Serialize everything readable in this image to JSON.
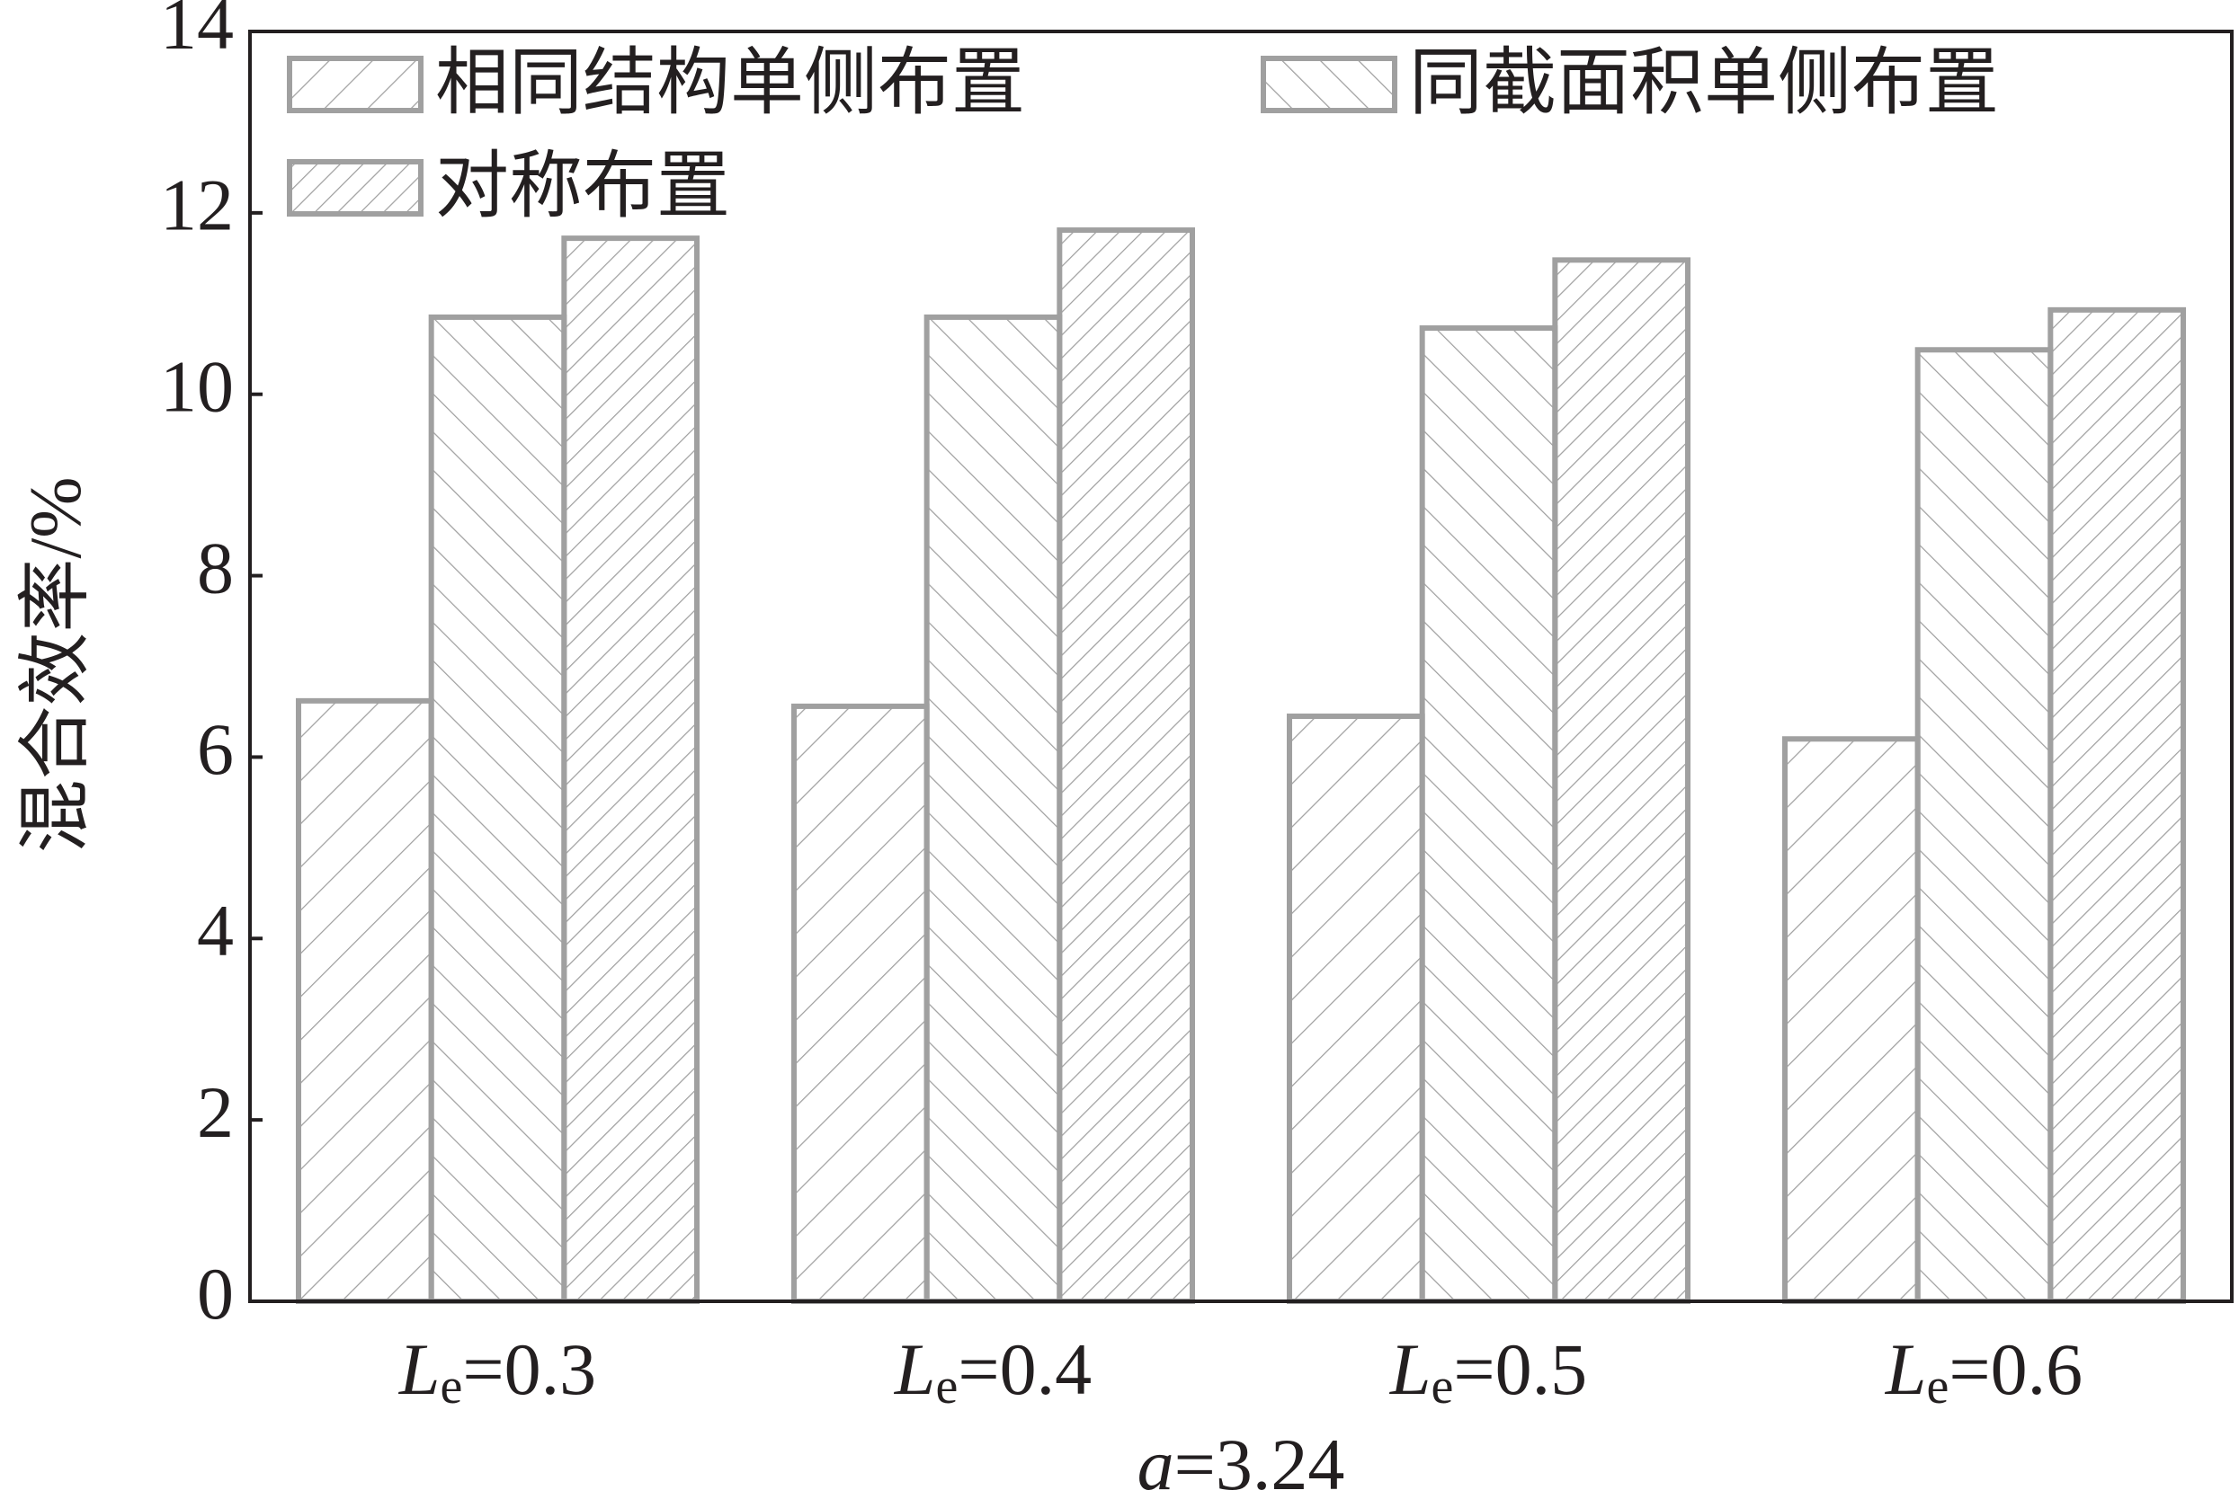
{
  "chart_data": {
    "type": "bar",
    "y_label": "混合效率/%",
    "x_label": "a=3.24",
    "categories": [
      "Le=0.3",
      "Le=0.4",
      "Le=0.5",
      "Le=0.6"
    ],
    "series": [
      {
        "name": "相同结构单侧布置",
        "color": "#a0a0a0",
        "values": [
          6.62,
          6.56,
          6.45,
          6.2
        ]
      },
      {
        "name": "同截面积单侧布置",
        "color": "#a0a0a0",
        "values": [
          10.85,
          10.85,
          10.73,
          10.49
        ]
      },
      {
        "name": "对称布置",
        "color": "#a0a0a0",
        "values": [
          11.72,
          11.81,
          11.48,
          10.93
        ]
      }
    ],
    "ylim": [
      0,
      14
    ],
    "yticks": [
      0,
      2,
      4,
      6,
      8,
      10,
      12,
      14
    ]
  }
}
